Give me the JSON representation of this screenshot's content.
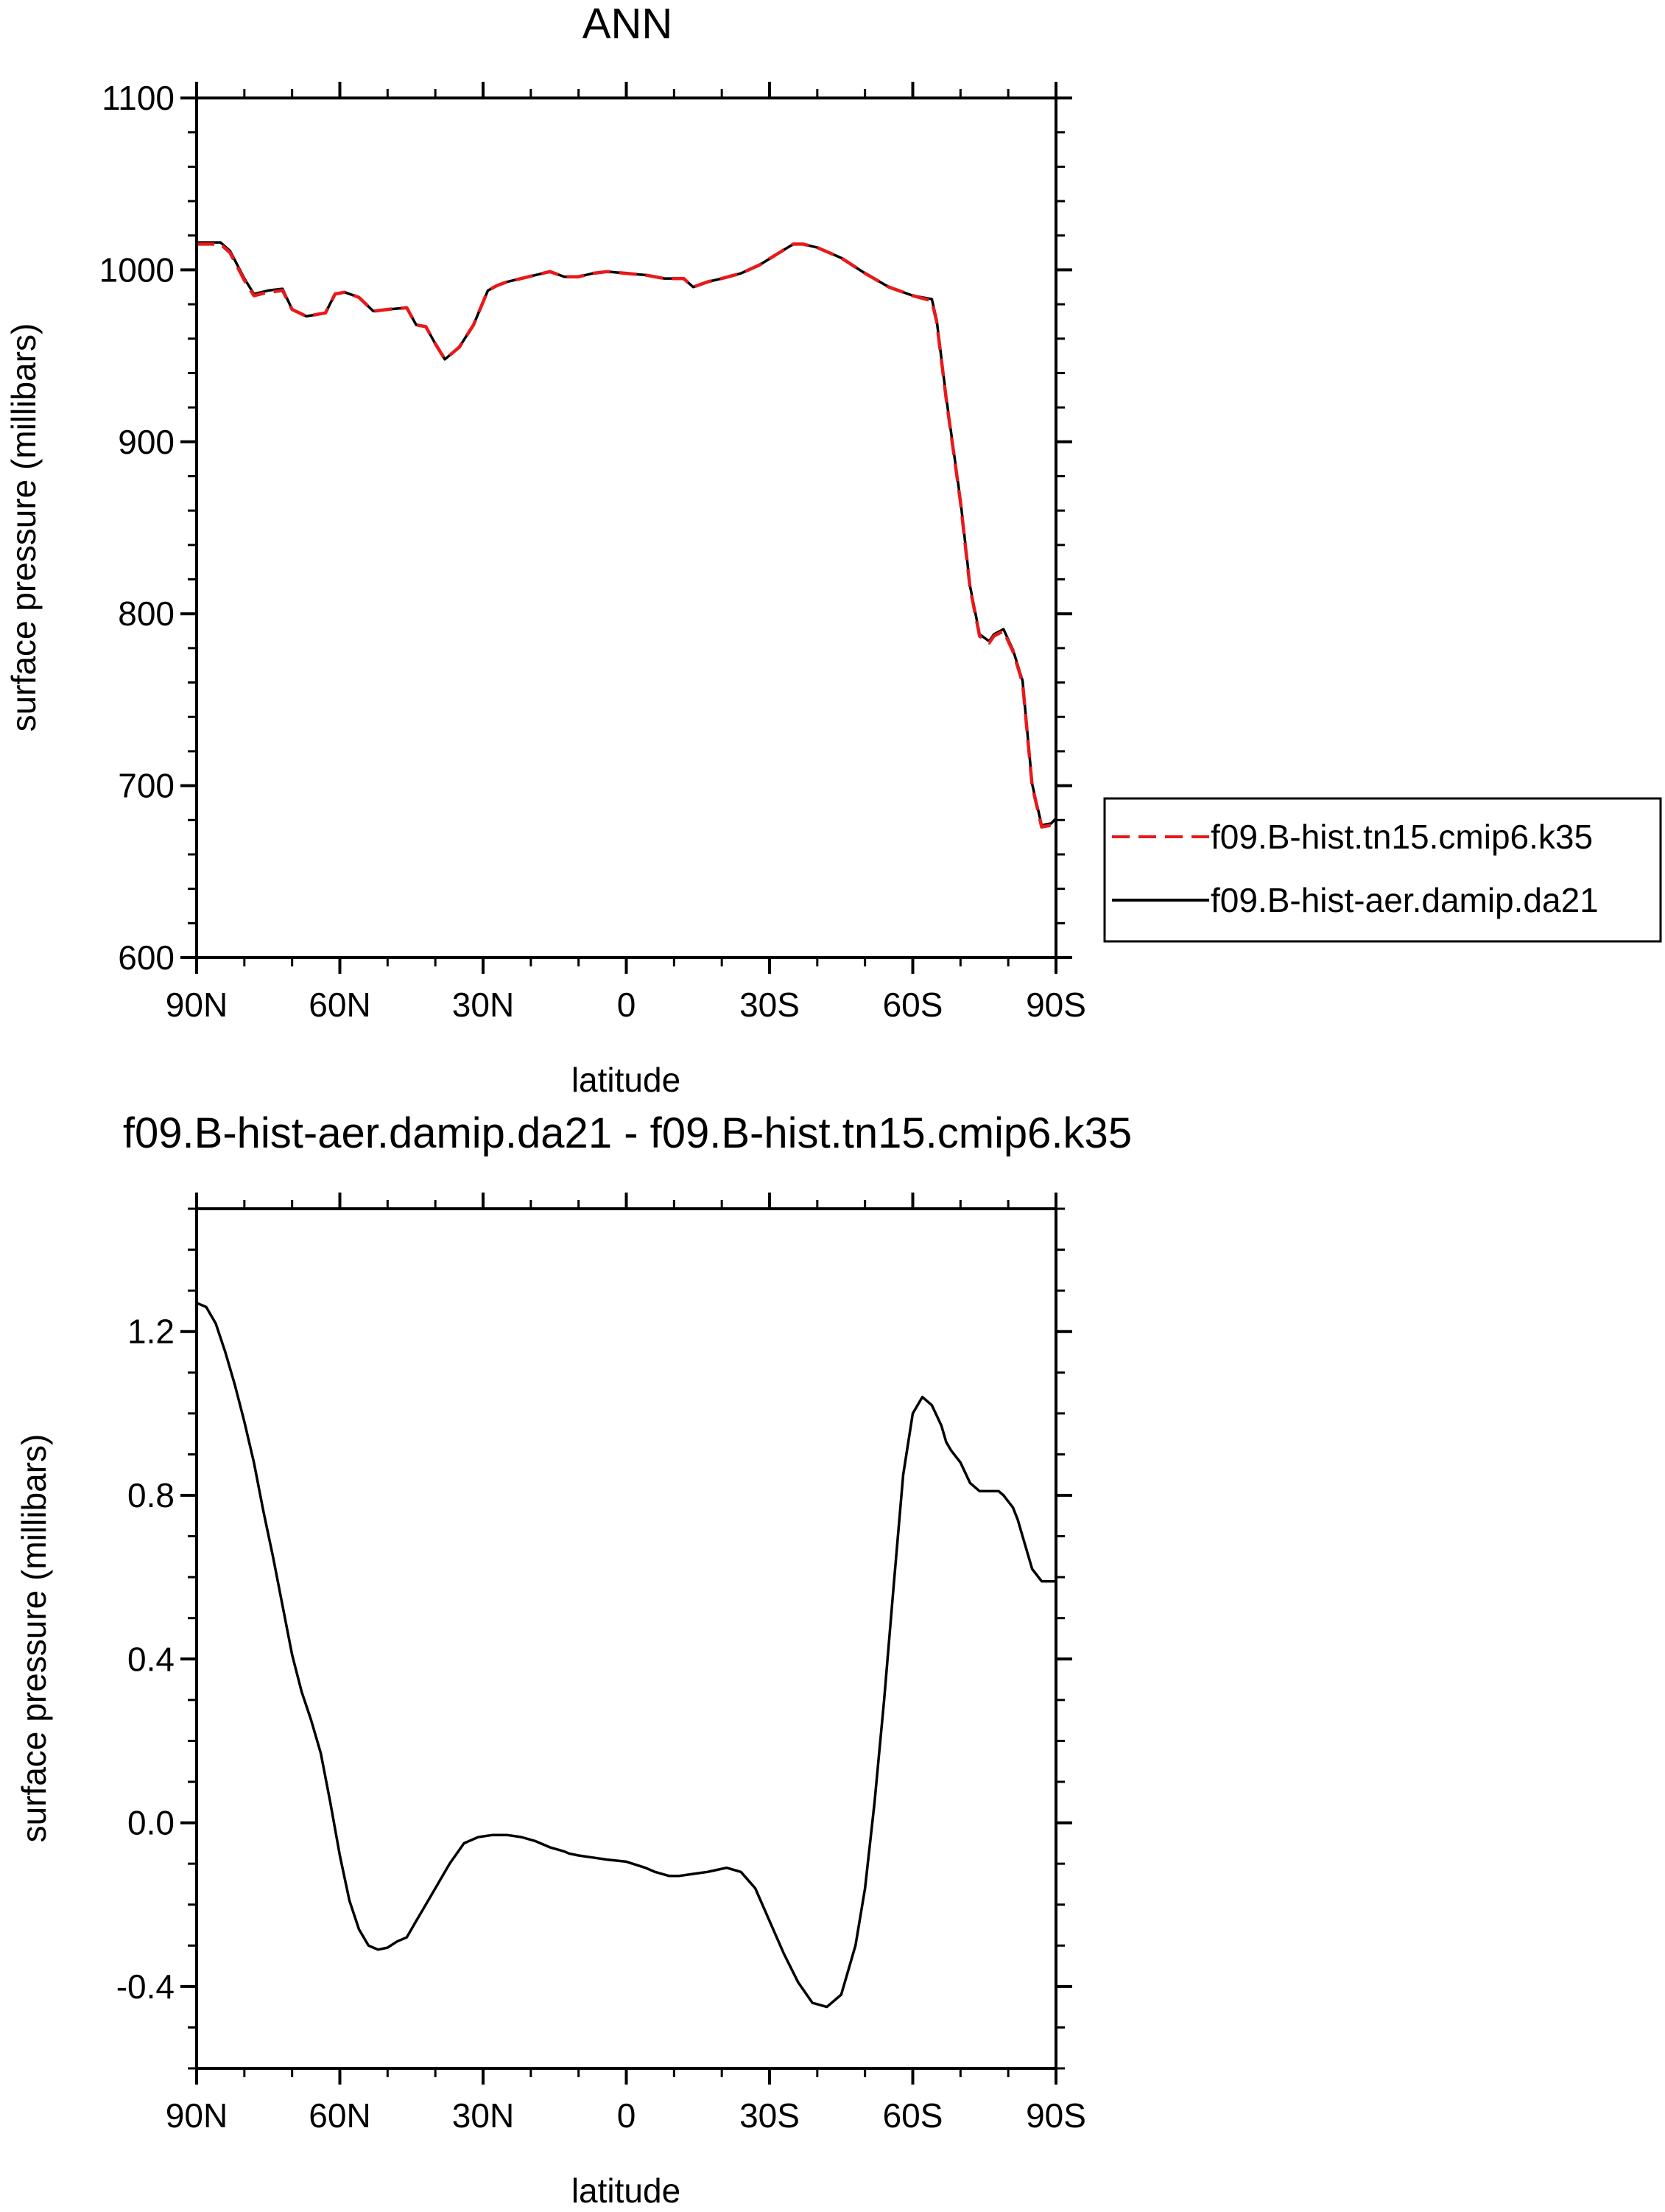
{
  "chart_data": [
    {
      "type": "line",
      "title": "ANN",
      "xlabel": "latitude",
      "ylabel": "surface pressure (millibars)",
      "xlim": [
        90,
        -90
      ],
      "ylim": [
        600,
        1100
      ],
      "xticks": [
        90,
        60,
        30,
        0,
        -30,
        -60,
        -90
      ],
      "xtick_labels": [
        "90N",
        "60N",
        "30N",
        "0",
        "30S",
        "60S",
        "90S"
      ],
      "yticks": [
        600,
        700,
        800,
        900,
        1000,
        1100
      ],
      "ytick_labels": [
        "600",
        "700",
        "800",
        "900",
        "1000",
        "1100"
      ],
      "legend": "right",
      "series": [
        {
          "name": "f09.B-hist.tn15.cmip6.k35",
          "color": "#e8191b",
          "dash": "dashed",
          "x": [
            90,
            85,
            83,
            80,
            78,
            75,
            72,
            70,
            67,
            63,
            61,
            59,
            56,
            53,
            50,
            46,
            44,
            42,
            40,
            38,
            35,
            32,
            29,
            27,
            25,
            22,
            19,
            16,
            13,
            10,
            7,
            4,
            0,
            -4,
            -8,
            -12,
            -14,
            -17,
            -20,
            -24,
            -28,
            -32,
            -35,
            -37,
            -40,
            -45,
            -50,
            -55,
            -60,
            -64,
            -65,
            -67,
            -70,
            -72,
            -74,
            -76,
            -77,
            -79,
            -81,
            -83,
            -84,
            -85,
            -87,
            -89,
            -90
          ],
          "y": [
            1015,
            1015,
            1010,
            994,
            985,
            987,
            988,
            977,
            973,
            975,
            986,
            987,
            984,
            976,
            977,
            978,
            968,
            967,
            957,
            948,
            955,
            968,
            988,
            991,
            993,
            995,
            997,
            999,
            996,
            996,
            998,
            999,
            998,
            997,
            995,
            995,
            990,
            993,
            995,
            998,
            1003,
            1010,
            1015,
            1015,
            1013,
            1007,
            998,
            990,
            985,
            982,
            970,
            925,
            865,
            815,
            787,
            783,
            787,
            790,
            778,
            760,
            730,
            700,
            676,
            677,
            680
          ]
        },
        {
          "name": "f09.B-hist-aer.damip.da21",
          "color": "#000000",
          "dash": "solid",
          "x": [
            90,
            85,
            83,
            80,
            78,
            75,
            72,
            70,
            67,
            63,
            61,
            59,
            56,
            53,
            50,
            46,
            44,
            42,
            40,
            38,
            35,
            32,
            29,
            27,
            25,
            22,
            19,
            16,
            13,
            10,
            7,
            4,
            0,
            -4,
            -8,
            -12,
            -14,
            -17,
            -20,
            -24,
            -28,
            -32,
            -35,
            -37,
            -40,
            -45,
            -50,
            -55,
            -60,
            -64,
            -65,
            -67,
            -70,
            -72,
            -74,
            -76,
            -77,
            -79,
            -81,
            -83,
            -84,
            -85,
            -87,
            -89,
            -90
          ],
          "y": [
            1016,
            1016,
            1011,
            995,
            986,
            988,
            989,
            977,
            973,
            975,
            986,
            987,
            984,
            976,
            977,
            978,
            968,
            967,
            957,
            948,
            955,
            968,
            988,
            991,
            993,
            995,
            997,
            999,
            996,
            996,
            998,
            999,
            998,
            997,
            995,
            995,
            990,
            993,
            995,
            998,
            1003,
            1010,
            1015,
            1015,
            1013,
            1007,
            998,
            990,
            985,
            983,
            971,
            926,
            866,
            816,
            788,
            784,
            788,
            791,
            779,
            761,
            731,
            701,
            677,
            678,
            681
          ]
        }
      ]
    },
    {
      "type": "line",
      "title": "f09.B-hist-aer.damip.da21 - f09.B-hist.tn15.cmip6.k35",
      "xlabel": "latitude",
      "ylabel": "surface pressure (millibars)",
      "xlim": [
        90,
        -90
      ],
      "ylim": [
        -0.6,
        1.5
      ],
      "xticks": [
        90,
        60,
        30,
        0,
        -30,
        -60,
        -90
      ],
      "xtick_labels": [
        "90N",
        "60N",
        "30N",
        "0",
        "30S",
        "60S",
        "90S"
      ],
      "yticks": [
        -0.4,
        0,
        0.4,
        0.8,
        1.2
      ],
      "ytick_labels": [
        "-0.4",
        "0.0",
        "0.4",
        "0.8",
        "1.2"
      ],
      "series": [
        {
          "color": "#000000",
          "dash": "solid",
          "x": [
            90,
            88,
            86,
            84,
            82,
            80,
            78,
            76,
            74,
            72,
            70,
            68,
            66,
            64,
            62,
            60,
            58,
            56,
            54,
            52,
            50,
            48,
            46,
            44,
            42,
            40,
            37,
            34,
            31,
            28,
            25,
            22,
            19,
            16,
            13,
            12,
            10,
            7,
            4,
            0,
            -4,
            -6,
            -9,
            -11,
            -14,
            -17,
            -19,
            -21,
            -24,
            -27,
            -30,
            -33,
            -36,
            -39,
            -42,
            -45,
            -48,
            -50,
            -52,
            -54,
            -56,
            -58,
            -60,
            -62,
            -64,
            -66,
            -67,
            -68,
            -70,
            -72,
            -74,
            -76,
            -78,
            -79,
            -81,
            -82,
            -83,
            -85,
            -87,
            -89,
            -90
          ],
          "y": [
            1.27,
            1.26,
            1.22,
            1.15,
            1.07,
            0.98,
            0.88,
            0.76,
            0.65,
            0.53,
            0.41,
            0.32,
            0.25,
            0.17,
            0.05,
            -0.08,
            -0.19,
            -0.26,
            -0.3,
            -0.31,
            -0.305,
            -0.29,
            -0.28,
            -0.24,
            -0.2,
            -0.16,
            -0.1,
            -0.05,
            -0.035,
            -0.03,
            -0.03,
            -0.035,
            -0.045,
            -0.06,
            -0.07,
            -0.075,
            -0.08,
            -0.085,
            -0.09,
            -0.095,
            -0.11,
            -0.12,
            -0.13,
            -0.13,
            -0.125,
            -0.12,
            -0.115,
            -0.11,
            -0.12,
            -0.16,
            -0.24,
            -0.32,
            -0.39,
            -0.44,
            -0.45,
            -0.42,
            -0.3,
            -0.16,
            0.05,
            0.3,
            0.58,
            0.85,
            1.0,
            1.04,
            1.02,
            0.97,
            0.93,
            0.91,
            0.88,
            0.83,
            0.81,
            0.81,
            0.81,
            0.8,
            0.77,
            0.74,
            0.7,
            0.62,
            0.59,
            0.59,
            0.59
          ]
        }
      ]
    }
  ]
}
